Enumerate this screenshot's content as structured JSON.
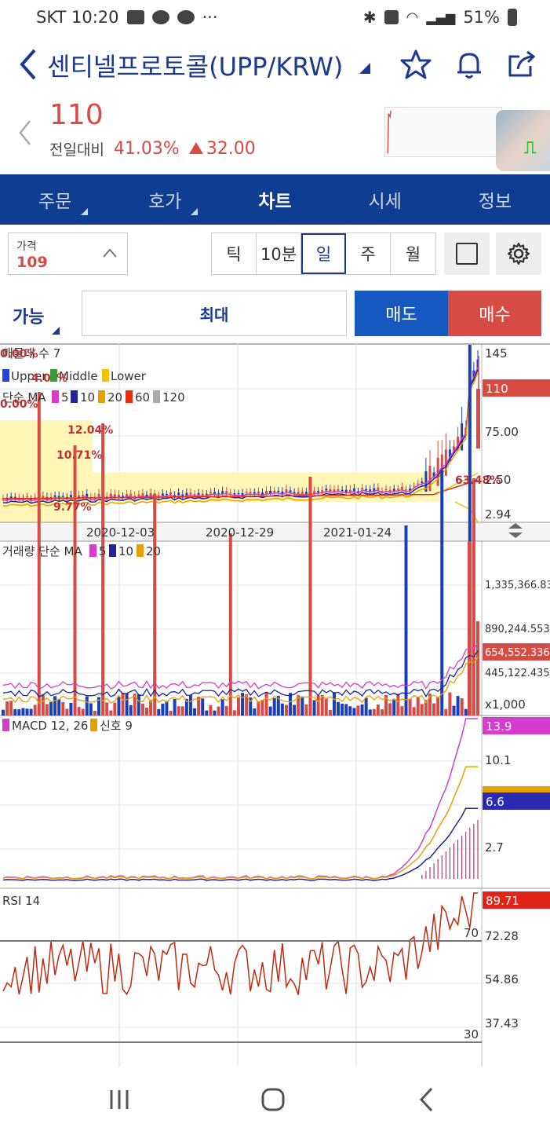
{
  "status": {
    "carrier_time": "SKT 10:20",
    "dots": "···",
    "battery": "51%"
  },
  "header": {
    "title": "센티넬프로토콜(UPP/KRW)"
  },
  "quote": {
    "price": "110",
    "prev_label": "전일대비",
    "change_pct": "41.03%",
    "change_amt": "32.00"
  },
  "tabs": [
    {
      "label": "주문",
      "menu": true
    },
    {
      "label": "호가",
      "menu": true
    },
    {
      "label": "차트",
      "active": true
    },
    {
      "label": "시세"
    },
    {
      "label": "정보"
    }
  ],
  "price_input": {
    "label": "가격",
    "value": "109"
  },
  "intervals": [
    {
      "label": "틱"
    },
    {
      "label": "10분"
    },
    {
      "label": "일",
      "selected": true
    },
    {
      "label": "주"
    },
    {
      "label": "월"
    }
  ],
  "order": {
    "available": "가능",
    "max": "최대",
    "sell": "매도",
    "buy": "매수"
  },
  "chart": {
    "price_panel": {
      "legends": [
        "매물대 수 7",
        "Upper",
        "Middle",
        "Lower",
        "단순 MA",
        "5",
        "10",
        "20",
        "60",
        "120"
      ],
      "overlay_pcts": [
        "0.00%",
        "4.0",
        "%",
        "0.00%",
        "12.04%",
        "10.71%",
        "9.77%",
        "63.48%"
      ],
      "axis_ticks": [
        "145",
        "75.00",
        "2.50",
        "2.94"
      ],
      "current_label": "110"
    },
    "date_ticks": [
      "2020-12-03",
      "2020-12-29",
      "2021-01-24"
    ],
    "volume_panel": {
      "legends": [
        "거래량 단순 MA",
        "5",
        "10",
        "20"
      ],
      "axis_ticks": [
        "1,335,366.830",
        "890,244.553",
        "445,122.435",
        "x1,000"
      ],
      "current_label": "654,552.336"
    },
    "macd_panel": {
      "legends": [
        "MACD 12, 26",
        "신호 9"
      ],
      "axis_ticks": [
        "10.1",
        "2.7"
      ],
      "current_label": "13.9",
      "signal_label": "6.6"
    },
    "rsi_panel": {
      "legends": [
        "RSI 14"
      ],
      "axis_ticks": [
        "72.28",
        "54.86",
        "37.43"
      ],
      "levels": [
        "70",
        "30"
      ],
      "current_label": "89.71"
    },
    "colors": {
      "up": "#d64c45",
      "down": "#1a3fb8",
      "magenta": "#d63ccf",
      "navy": "#22229a",
      "orange": "#e8a000",
      "yellow_band": "#fff6b8"
    }
  },
  "chart_data": [
    {
      "type": "line",
      "title": "RSI 14",
      "x": [
        "2020-12-03",
        "2020-12-29",
        "2021-01-24"
      ],
      "series": [
        {
          "name": "RSI 14",
          "values": [
            62,
            55,
            67
          ]
        }
      ],
      "ylim": [
        30,
        95
      ]
    }
  ]
}
